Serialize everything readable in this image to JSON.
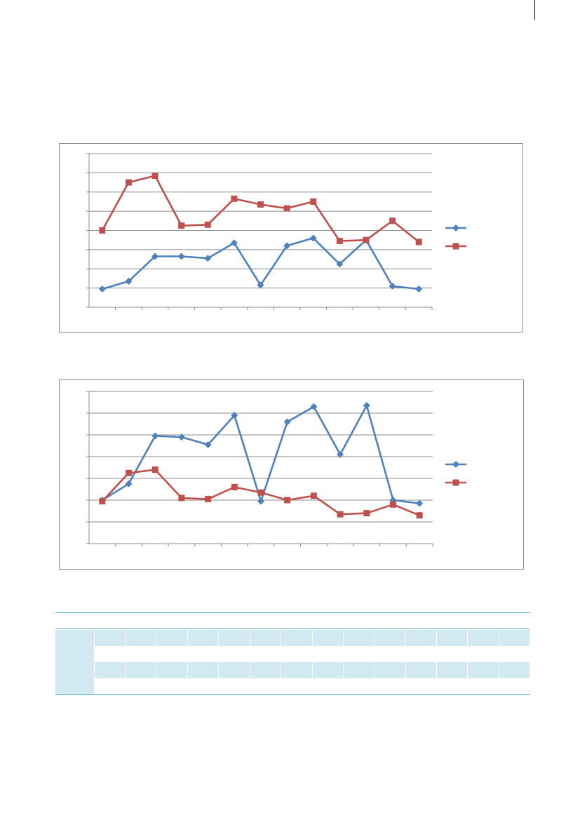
{
  "colors": {
    "series_blue": "#4f81bd",
    "series_red": "#c0504d",
    "gridline": "#8c8c8c",
    "table_band": "#d2e9f2",
    "table_rule": "#4bacc6"
  },
  "chart_data": [
    {
      "type": "line",
      "markers": [
        "diamond",
        "square"
      ],
      "ylim": [
        0,
        8
      ],
      "grid": true,
      "legend": "right",
      "x": [
        1,
        2,
        3,
        4,
        5,
        6,
        7,
        8,
        9,
        10,
        11,
        12,
        13
      ],
      "series": [
        {
          "color": "#4f81bd",
          "marker": "diamond",
          "values": [
            0.95,
            1.35,
            2.65,
            2.65,
            2.55,
            3.35,
            1.15,
            3.2,
            3.6,
            2.25,
            3.5,
            1.1,
            0.95
          ]
        },
        {
          "color": "#c0504d",
          "marker": "square",
          "values": [
            4.0,
            6.5,
            6.85,
            4.25,
            4.3,
            5.65,
            5.35,
            5.15,
            5.5,
            3.45,
            3.5,
            4.5,
            3.4
          ]
        }
      ]
    },
    {
      "type": "line",
      "markers": [
        "diamond",
        "square"
      ],
      "ylim": [
        0,
        7
      ],
      "grid": true,
      "legend": "right",
      "x": [
        1,
        2,
        3,
        4,
        5,
        6,
        7,
        8,
        9,
        10,
        11,
        12,
        13
      ],
      "series": [
        {
          "color": "#4f81bd",
          "marker": "diamond",
          "values": [
            2.0,
            2.75,
            4.95,
            4.9,
            4.55,
            5.9,
            1.95,
            5.6,
            6.3,
            4.1,
            6.35,
            2.0,
            1.85
          ]
        },
        {
          "color": "#c0504d",
          "marker": "square",
          "values": [
            1.95,
            3.25,
            3.4,
            2.1,
            2.05,
            2.6,
            2.35,
            2.0,
            2.2,
            1.35,
            1.4,
            1.8,
            1.3
          ]
        }
      ]
    }
  ],
  "table": {
    "columns": 15,
    "band_rows": [
      0,
      2
    ]
  }
}
